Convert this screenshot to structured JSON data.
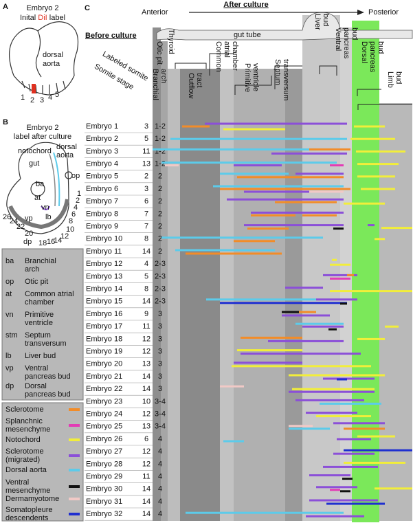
{
  "panel_a": {
    "label": "A",
    "title": "Embryo 2",
    "subtitle_parts": [
      "Inital ",
      "DiI",
      " label"
    ],
    "aorta_label": [
      "dorsal",
      "aorta"
    ],
    "somite_labels": [
      "1",
      "2",
      "3",
      "4",
      "5"
    ]
  },
  "panel_b": {
    "label": "B",
    "title": "Embryo 2",
    "subtitle": "label after culture",
    "notochord": "notochord",
    "gut": "gut",
    "dorsal_aorta": [
      "dorsal",
      "aorta"
    ],
    "labels": [
      "op",
      "ba",
      "at",
      "vn",
      "lb",
      "vp",
      "dp"
    ],
    "somite_labels": [
      "26",
      "24",
      "22",
      "20",
      "18",
      "16",
      "14",
      "12",
      "10",
      "8",
      "6",
      "4",
      "2",
      "1"
    ]
  },
  "abbreviations": [
    {
      "abbr": "ba",
      "lines": [
        "Branchial",
        "arch"
      ]
    },
    {
      "abbr": "op",
      "lines": [
        "Otic pit"
      ]
    },
    {
      "abbr": "at",
      "lines": [
        "Common atrial",
        "chamber"
      ]
    },
    {
      "abbr": "vn",
      "lines": [
        "Primitive",
        "ventricle"
      ]
    },
    {
      "abbr": "stm",
      "lines": [
        "Septum",
        "transversum"
      ]
    },
    {
      "abbr": "lb",
      "lines": [
        "Liver bud"
      ]
    },
    {
      "abbr": "vp",
      "lines": [
        "Ventral",
        "pancreas bud"
      ]
    },
    {
      "abbr": "dp",
      "lines": [
        "Dorsal",
        "pancreas bud"
      ]
    }
  ],
  "legend": [
    {
      "lines": [
        "Sclerotome"
      ],
      "color": "#f28c28"
    },
    {
      "lines": [
        "Splanchnic",
        "mesenchyme"
      ],
      "color": "#e33cb5"
    },
    {
      "lines": [
        "Notochord"
      ],
      "color": "#f2ee3a"
    },
    {
      "lines": [
        "Sclerotome",
        "(migrated)"
      ],
      "color": "#8b4fd8"
    },
    {
      "lines": [
        "Dorsal aorta"
      ],
      "color": "#5ccbea"
    },
    {
      "lines": [
        "Ventral",
        "mesenchyme"
      ],
      "color": "#111111"
    },
    {
      "lines": [
        "Dermamyotome"
      ],
      "color": "#f1c9c6"
    },
    {
      "lines": [
        "Somatopleure",
        "descendents"
      ],
      "color": "#1f2fd0"
    }
  ],
  "panel_c": {
    "label": "C",
    "title": "After culture",
    "anterior": "Anterior",
    "posterior": "Posterior",
    "before": "Before culture",
    "gut_tube": "gut tube",
    "col_headers": [
      "Labeled somite",
      "Somite stage"
    ],
    "regions": [
      {
        "lines": [
          "Thyroid"
        ]
      },
      {
        "lines": [
          "Otic pit"
        ]
      },
      {
        "lines": [
          "Branchial",
          "arch"
        ]
      },
      {
        "lines": [
          "Outflow",
          "tract"
        ]
      },
      {
        "lines": [
          "Common",
          "atrial",
          "chamber"
        ]
      },
      {
        "lines": [
          "Primitive",
          "ventricle"
        ]
      },
      {
        "lines": [
          "Septum",
          "transversum"
        ]
      },
      {
        "lines": [
          "Liver",
          "bud"
        ]
      },
      {
        "lines": [
          "Ventral",
          "pancreas",
          "bud"
        ]
      },
      {
        "lines": [
          "Dorsal",
          "pancreas",
          "bud"
        ]
      },
      {
        "lines": [
          "Limb",
          "bud"
        ]
      }
    ],
    "rows": [
      [
        "Embryo 1",
        3,
        "1-2"
      ],
      [
        "Embryo 2",
        5,
        "1-2"
      ],
      [
        "Embryo 3",
        11,
        "1-2"
      ],
      [
        "Embryo 4",
        13,
        "1-2"
      ],
      [
        "Embryo 5",
        2,
        2
      ],
      [
        "Embryo 6",
        3,
        2
      ],
      [
        "Embryo 7",
        6,
        2
      ],
      [
        "Embryo 8",
        7,
        2
      ],
      [
        "Embryo 9",
        7,
        2
      ],
      [
        "Embryo 10",
        8,
        2
      ],
      [
        "Embryo 11",
        14,
        2
      ],
      [
        "Embryo 12",
        4,
        "2-3"
      ],
      [
        "Embryo 13",
        5,
        "2-3"
      ],
      [
        "Embryo 14",
        8,
        "2-3"
      ],
      [
        "Embryo 15",
        14,
        "2-3"
      ],
      [
        "Embryo 16",
        9,
        3
      ],
      [
        "Embryo 17",
        11,
        3
      ],
      [
        "Embryo 18",
        12,
        3
      ],
      [
        "Embryo 19",
        12,
        3
      ],
      [
        "Embryo 20",
        13,
        3
      ],
      [
        "Embryo 21",
        14,
        3
      ],
      [
        "Embryo 22",
        14,
        3
      ],
      [
        "Embryo 23",
        10,
        "3-4"
      ],
      [
        "Embryo 24",
        12,
        "3-4"
      ],
      [
        "Embryo 25",
        13,
        "3-4"
      ],
      [
        "Embryo 26",
        6,
        4
      ],
      [
        "Embryo 27",
        12,
        4
      ],
      [
        "Embryo 28",
        12,
        4
      ],
      [
        "Embryo 29",
        11,
        4
      ],
      [
        "Embryo 30",
        14,
        4
      ],
      [
        "Embryo 31",
        14,
        4
      ],
      [
        "Embryo 32",
        14,
        4
      ]
    ]
  }
}
